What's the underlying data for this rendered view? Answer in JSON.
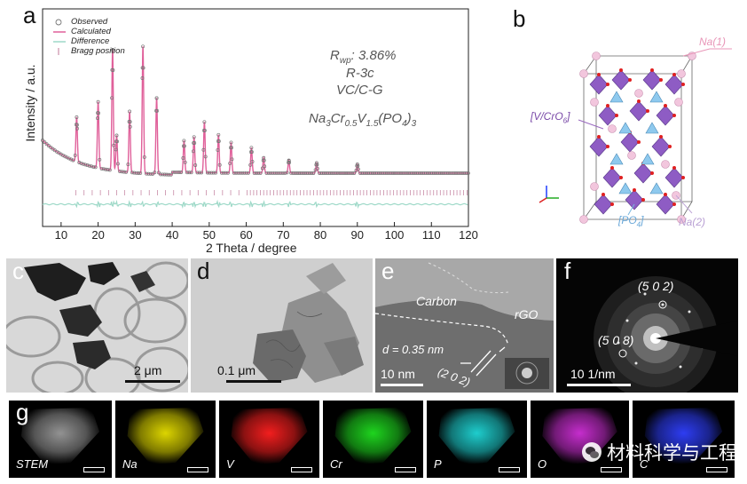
{
  "panels": {
    "a": "a",
    "b": "b",
    "c": "c",
    "d": "d",
    "e": "e",
    "f": "f",
    "g": "g"
  },
  "panel_a": {
    "ylabel": "Intensity / a.u.",
    "xlabel": "2 Theta / degree",
    "legend": [
      "Observed",
      "Calculated",
      "Difference",
      "Bragg position"
    ],
    "rwp": "R",
    "rwp_sub": "wp",
    "rwp_val": ": 3.86%",
    "space_group": "R-3c",
    "sample": "VC/C-G",
    "formula_parts": [
      "Na",
      "3",
      "Cr",
      "0.5",
      "V",
      "1.5",
      "(PO",
      "4",
      ")",
      "3"
    ],
    "colors": {
      "observed": "#777777",
      "calculated": "#e0609a",
      "difference": "#9ed9c8",
      "bragg": "#c07a9a"
    }
  },
  "chart_data": {
    "type": "line",
    "title": "",
    "xlabel": "2 Theta / degree",
    "ylabel": "Intensity / a.u.",
    "xlim": [
      5,
      120
    ],
    "ylim": [
      0,
      1.0
    ],
    "xticks": [
      10,
      20,
      30,
      40,
      50,
      60,
      70,
      80,
      90,
      100,
      110,
      120
    ],
    "series": [
      {
        "name": "Observed",
        "style": "markers"
      },
      {
        "name": "Calculated",
        "style": "line"
      },
      {
        "name": "Difference",
        "style": "line"
      },
      {
        "name": "Bragg position",
        "style": "ticks"
      }
    ],
    "peaks": [
      {
        "x": 14.2,
        "y": 0.35
      },
      {
        "x": 20.0,
        "y": 0.52
      },
      {
        "x": 23.9,
        "y": 0.95
      },
      {
        "x": 25.0,
        "y": 0.28
      },
      {
        "x": 28.5,
        "y": 0.48
      },
      {
        "x": 32.1,
        "y": 1.0
      },
      {
        "x": 35.8,
        "y": 0.6
      },
      {
        "x": 43.2,
        "y": 0.25
      },
      {
        "x": 45.9,
        "y": 0.28
      },
      {
        "x": 48.7,
        "y": 0.4
      },
      {
        "x": 52.5,
        "y": 0.3
      },
      {
        "x": 55.9,
        "y": 0.24
      },
      {
        "x": 61.4,
        "y": 0.2
      },
      {
        "x": 64.7,
        "y": 0.12
      },
      {
        "x": 71.5,
        "y": 0.1
      },
      {
        "x": 79.0,
        "y": 0.08
      },
      {
        "x": 90.0,
        "y": 0.07
      }
    ]
  },
  "panel_b": {
    "na1": "Na(1)",
    "na2": "Na(2)",
    "vcro": "[V/CrO",
    "vcro_sub": "6",
    "vcro_end": "]",
    "po": "[PO",
    "po_sub": "4",
    "po_end": "]"
  },
  "panel_c": {
    "scale": "2 μm"
  },
  "panel_d": {
    "scale": "0.1 μm"
  },
  "panel_e": {
    "carbon": "Carbon",
    "rgo": "rGO",
    "d_spacing": "d = 0.35 nm",
    "plane": "(2 0 2)",
    "scale": "10 nm"
  },
  "panel_f": {
    "ring1": "(5 0 2)",
    "ring2": "(5 0 8)",
    "scale": "10 1/nm"
  },
  "panel_g": {
    "tiles": [
      {
        "label": "STEM",
        "color": "#9a9a9a"
      },
      {
        "label": "Na",
        "color": "#e8e000"
      },
      {
        "label": "V",
        "color": "#ff2020"
      },
      {
        "label": "Cr",
        "color": "#20e020"
      },
      {
        "label": "P",
        "color": "#20d8d8"
      },
      {
        "label": "O",
        "color": "#d030d8"
      },
      {
        "label": "C",
        "color": "#3040ff"
      }
    ],
    "watermark": "材料科学与工程"
  }
}
